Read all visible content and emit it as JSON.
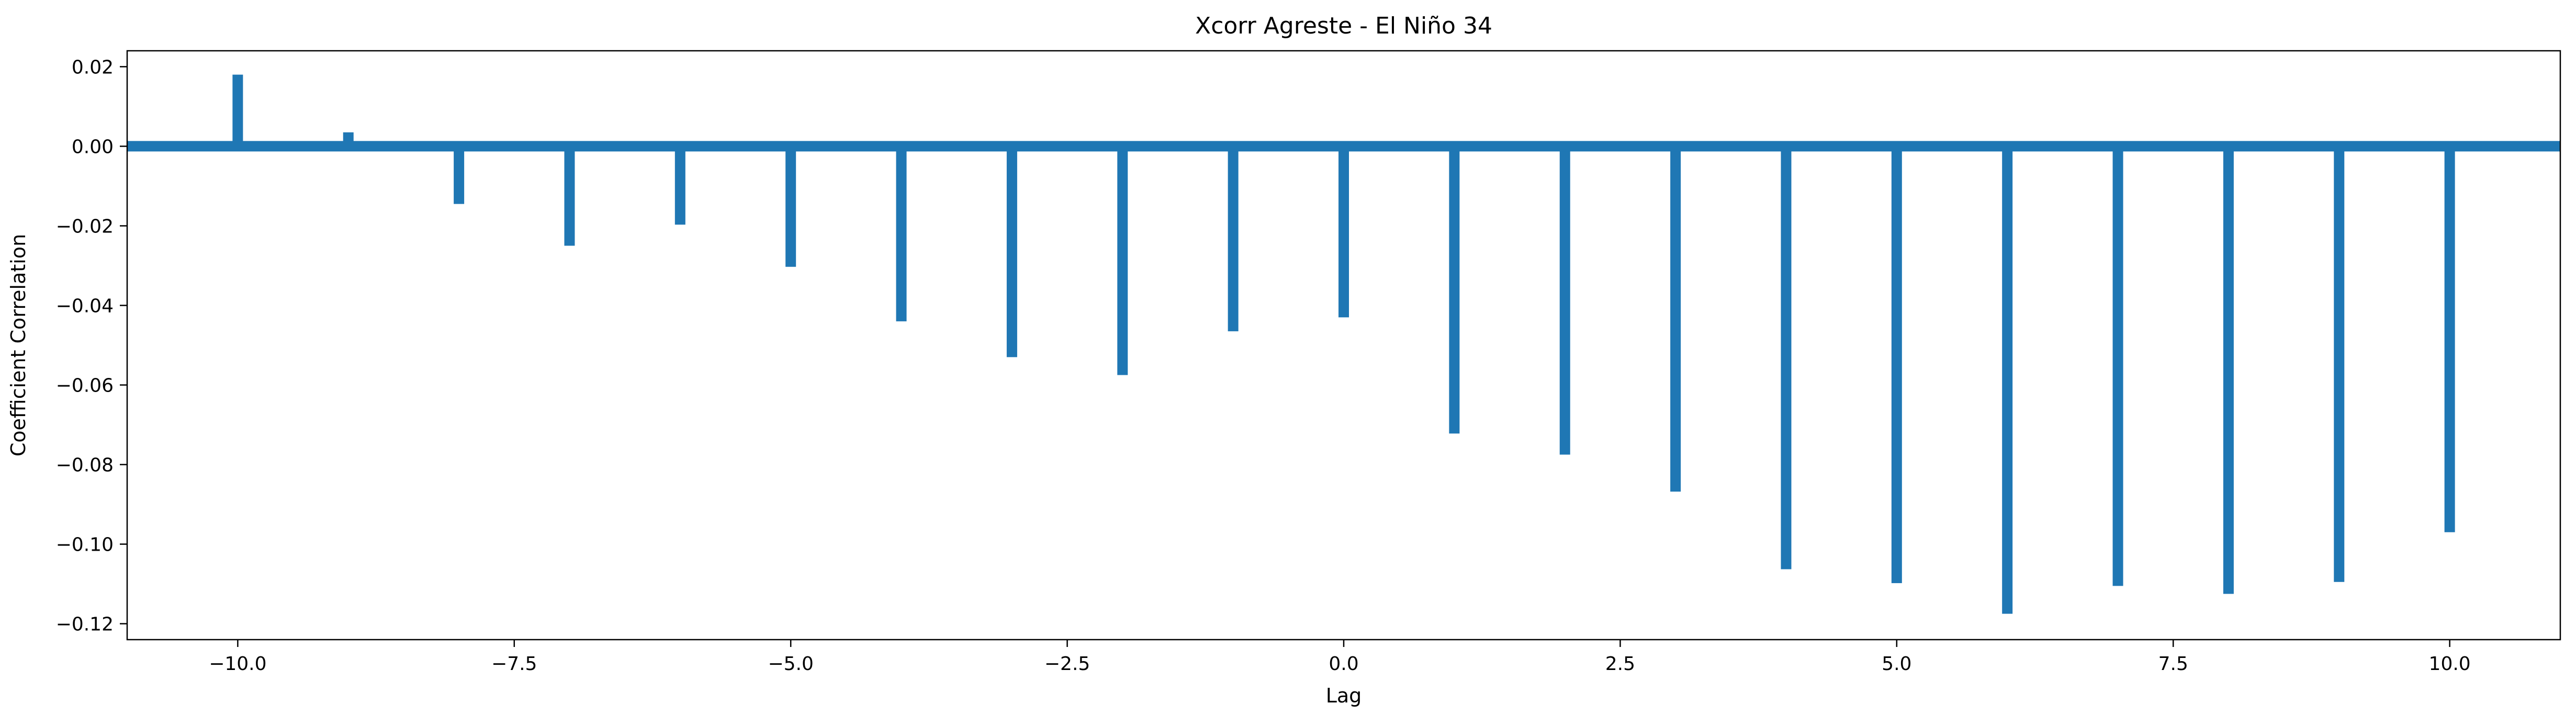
{
  "chart_data": {
    "type": "bar",
    "title": "Xcorr Agreste - El Niño 34",
    "xlabel": "Lag",
    "ylabel": "Coefficient Correlation",
    "xlim": [
      -11.0,
      11.0
    ],
    "ylim": [
      -0.124,
      0.024
    ],
    "x": [
      -10,
      -9,
      -8,
      -7,
      -6,
      -5,
      -4,
      -3,
      -2,
      -1,
      0,
      1,
      2,
      3,
      4,
      5,
      6,
      7,
      8,
      9,
      10
    ],
    "values": [
      0.018,
      0.0035,
      -0.0145,
      -0.025,
      -0.0197,
      -0.0303,
      -0.044,
      -0.053,
      -0.0575,
      -0.0465,
      -0.043,
      -0.0722,
      -0.0775,
      -0.0868,
      -0.1063,
      -0.1098,
      -0.1175,
      -0.1105,
      -0.1125,
      -0.1095,
      -0.097
    ],
    "baseline": 0,
    "xticks": [
      -10.0,
      -7.5,
      -5.0,
      -2.5,
      0.0,
      2.5,
      5.0,
      7.5,
      10.0
    ],
    "xtick_labels": [
      "−10.0",
      "−7.5",
      "−5.0",
      "−2.5",
      "0.0",
      "2.5",
      "5.0",
      "7.5",
      "10.0"
    ],
    "yticks": [
      0.02,
      0.0,
      -0.02,
      -0.04,
      -0.06,
      -0.08,
      -0.1,
      -0.12
    ],
    "ytick_labels": [
      "0.02",
      "0.00",
      "−0.02",
      "−0.04",
      "−0.06",
      "−0.08",
      "−0.10",
      "−0.12"
    ],
    "grid": false,
    "legend": "none",
    "color": "#1f77b4"
  }
}
